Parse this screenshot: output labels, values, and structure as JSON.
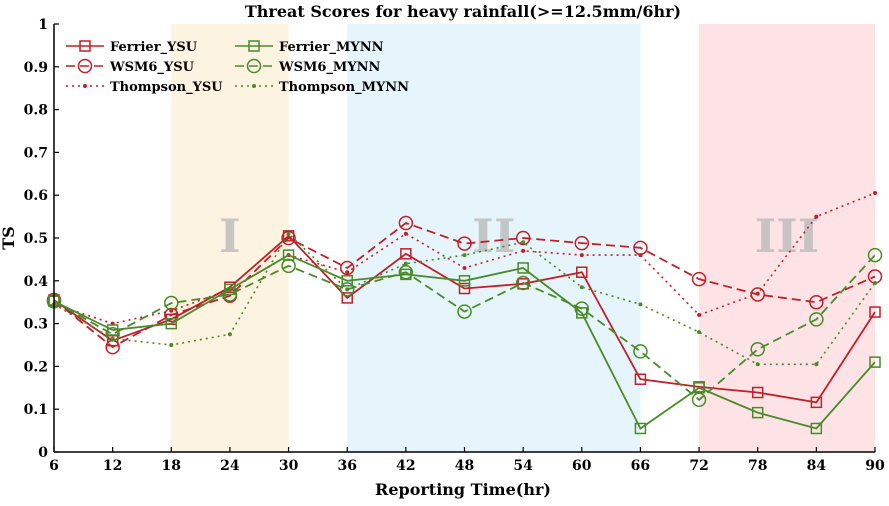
{
  "chart_data": {
    "type": "line",
    "title": "Threat Scores for heavy rainfall(>=12.5mm/6hr)",
    "xlabel": "Reporting Time(hr)",
    "ylabel": "TS",
    "x": [
      6,
      12,
      18,
      24,
      30,
      36,
      42,
      48,
      54,
      60,
      66,
      72,
      78,
      84,
      90
    ],
    "xlim": [
      6,
      90
    ],
    "ylim": [
      0,
      1
    ],
    "xticks": [
      "6",
      "12",
      "18",
      "24",
      "30",
      "36",
      "42",
      "48",
      "54",
      "60",
      "66",
      "72",
      "78",
      "84",
      "90"
    ],
    "yticks": [
      "0",
      "0.1",
      "0.2",
      "0.3",
      "0.4",
      "0.5",
      "0.6",
      "0.7",
      "0.8",
      "0.9",
      "1"
    ],
    "grid": false,
    "legend_position": "top-left",
    "regions": [
      {
        "label": "I",
        "x_start": 18,
        "x_end": 30,
        "color": "#fdf3e1"
      },
      {
        "label": "II",
        "x_start": 36,
        "x_end": 66,
        "color": "#e6f5fb"
      },
      {
        "label": "III",
        "x_start": 72,
        "x_end": 90,
        "color": "#fde3e6"
      }
    ],
    "series": [
      {
        "name": "Ferrier_YSU",
        "color": "#c0202a",
        "dash": "solid",
        "marker": "square",
        "values": [
          0.355,
          0.26,
          0.31,
          0.385,
          0.505,
          0.36,
          0.463,
          0.382,
          0.393,
          0.42,
          0.17,
          0.152,
          0.139,
          0.116,
          0.327
        ]
      },
      {
        "name": "WSM6_YSU",
        "color": "#c0202a",
        "dash": "dashed",
        "marker": "circle",
        "values": [
          0.355,
          0.245,
          0.32,
          0.365,
          0.5,
          0.43,
          0.535,
          0.487,
          0.5,
          0.488,
          0.477,
          0.404,
          0.368,
          0.35,
          0.41
        ]
      },
      {
        "name": "Thompson_YSU",
        "color": "#c0202a",
        "dash": "dotted",
        "marker": "dot",
        "values": [
          0.345,
          0.3,
          0.33,
          0.38,
          0.46,
          0.42,
          0.51,
          0.43,
          0.47,
          0.46,
          0.46,
          0.32,
          0.37,
          0.55,
          0.605
        ]
      },
      {
        "name": "Ferrier_MYNN",
        "color": "#4a8a2a",
        "dash": "solid",
        "marker": "square",
        "values": [
          0.352,
          0.285,
          0.3,
          0.38,
          0.46,
          0.4,
          0.415,
          0.4,
          0.43,
          0.325,
          0.055,
          0.15,
          0.092,
          0.055,
          0.21
        ]
      },
      {
        "name": "WSM6_MYNN",
        "color": "#4a8a2a",
        "dash": "dashed",
        "marker": "circle",
        "values": [
          0.352,
          0.275,
          0.348,
          0.368,
          0.435,
          0.38,
          0.42,
          0.328,
          0.395,
          0.335,
          0.235,
          0.122,
          0.24,
          0.31,
          0.46
        ]
      },
      {
        "name": "Thompson_MYNN",
        "color": "#4a8a2a",
        "dash": "dotted",
        "marker": "dot",
        "values": [
          0.345,
          0.265,
          0.25,
          0.275,
          0.51,
          0.38,
          0.44,
          0.46,
          0.49,
          0.385,
          0.345,
          0.28,
          0.205,
          0.205,
          0.395
        ]
      }
    ]
  }
}
